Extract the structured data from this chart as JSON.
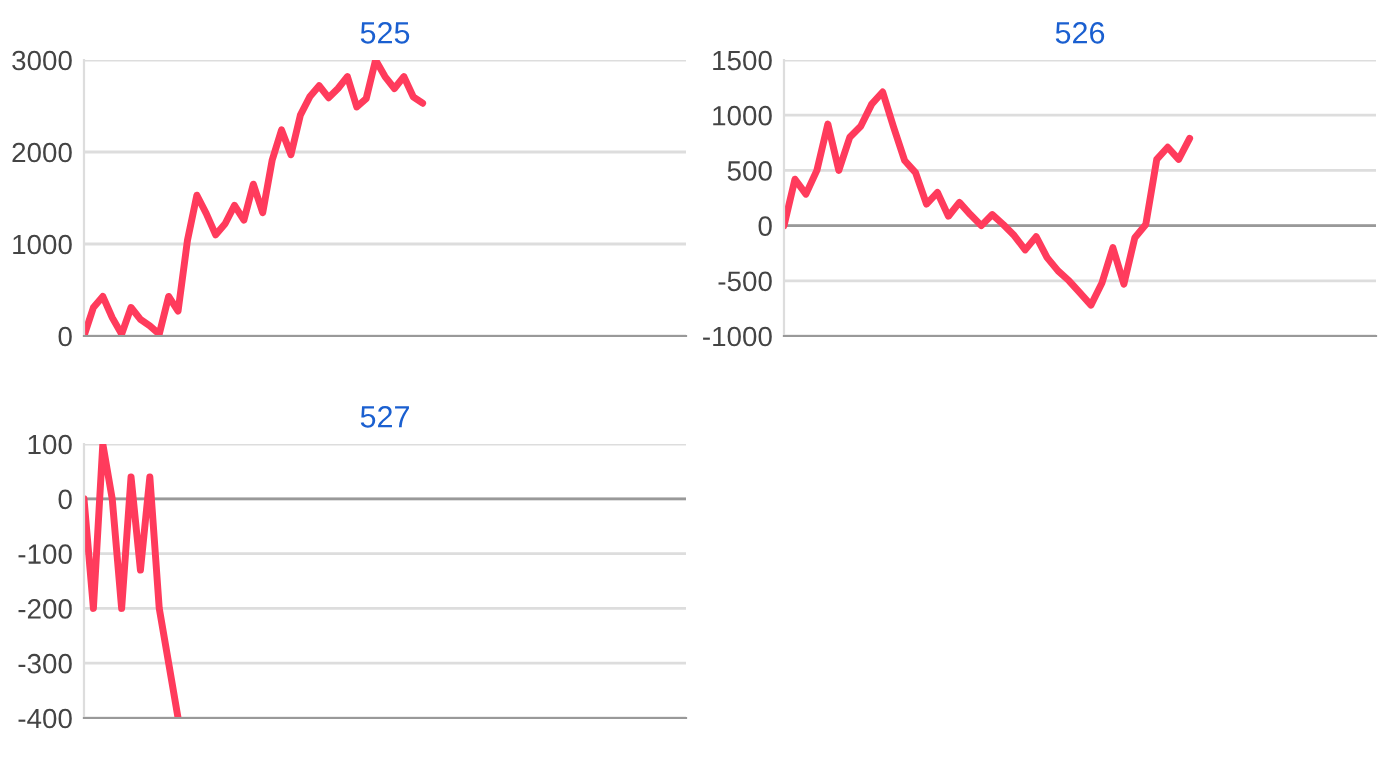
{
  "chart_data": [
    {
      "type": "line",
      "title": "525",
      "categories": [
        null,
        null,
        null,
        null,
        null,
        null,
        null,
        null,
        null,
        null,
        null,
        null,
        null,
        null,
        null,
        null,
        null,
        null,
        null,
        null,
        null,
        null,
        null,
        null,
        null,
        null,
        null,
        null,
        null,
        null,
        null,
        null,
        null,
        null,
        null,
        null,
        null,
        null,
        null,
        null,
        null,
        null,
        null,
        null,
        null,
        null,
        null,
        null,
        null,
        null,
        null,
        null,
        null,
        null,
        null,
        null,
        null,
        null,
        null,
        null,
        null,
        null,
        null,
        null,
        null
      ],
      "series": [
        {
          "color": "#ff3b5c",
          "values": [
            0,
            310,
            430,
            200,
            20,
            310,
            180,
            110,
            20,
            430,
            270,
            1040,
            1530,
            1330,
            1100,
            1220,
            1420,
            1260,
            1650,
            1340,
            1910,
            2240,
            1970,
            2400,
            2600,
            2720,
            2590,
            2690,
            2820,
            2490,
            2580,
            3000,
            2820,
            2690,
            2820,
            2600,
            2530,
            null,
            null,
            null,
            null,
            null,
            null,
            null,
            null,
            null,
            null,
            null,
            null,
            null,
            null,
            null,
            null,
            null,
            null,
            null,
            null,
            null,
            null,
            null,
            null,
            null,
            null,
            null,
            null
          ]
        }
      ],
      "ylim": [
        0,
        3000
      ],
      "yticks": [
        0,
        1000,
        2000,
        3000
      ],
      "grid": "y",
      "tick_labels": "y",
      "marker": "none",
      "line_style": "solid"
    },
    {
      "type": "line",
      "title": "526",
      "categories": [
        null,
        null,
        null,
        null,
        null,
        null,
        null,
        null,
        null,
        null,
        null,
        null,
        null,
        null,
        null,
        null,
        null,
        null,
        null,
        null,
        null,
        null,
        null,
        null,
        null,
        null,
        null,
        null,
        null,
        null,
        null,
        null,
        null,
        null,
        null,
        null,
        null,
        null,
        null,
        null,
        null,
        null,
        null,
        null,
        null,
        null,
        null,
        null,
        null,
        null,
        null,
        null,
        null,
        null,
        null
      ],
      "series": [
        {
          "color": "#ff3b5c",
          "values": [
            0,
            420,
            285,
            500,
            920,
            500,
            800,
            900,
            1100,
            1210,
            890,
            590,
            480,
            195,
            300,
            85,
            210,
            100,
            0,
            100,
            10,
            -90,
            -220,
            -100,
            -290,
            -410,
            -500,
            -610,
            -720,
            -520,
            -200,
            -530,
            -110,
            10,
            600,
            710,
            600,
            790,
            null,
            null,
            null,
            null,
            null,
            null,
            null,
            null,
            null,
            null,
            null,
            null,
            null,
            null,
            null,
            null,
            null
          ]
        }
      ],
      "ylim": [
        -1000,
        1500
      ],
      "yticks": [
        -1000,
        -500,
        0,
        500,
        1000,
        1500
      ],
      "grid": "y",
      "tick_labels": "y",
      "marker": "none",
      "line_style": "solid"
    },
    {
      "type": "line",
      "title": "527",
      "categories": [
        null,
        null,
        null,
        null,
        null,
        null,
        null,
        null,
        null,
        null,
        null,
        null,
        null,
        null,
        null,
        null,
        null,
        null,
        null,
        null,
        null,
        null,
        null,
        null,
        null,
        null,
        null,
        null,
        null,
        null,
        null,
        null,
        null,
        null,
        null,
        null,
        null,
        null,
        null,
        null,
        null,
        null,
        null,
        null,
        null,
        null,
        null,
        null,
        null,
        null,
        null,
        null,
        null,
        null,
        null,
        null,
        null,
        null,
        null,
        null,
        null,
        null,
        null,
        null,
        null
      ],
      "series": [
        {
          "color": "#ff3b5c",
          "values": [
            0,
            -200,
            100,
            0,
            -200,
            40,
            -130,
            40,
            -200,
            -300,
            -400,
            null,
            null,
            null,
            null,
            null,
            null,
            null,
            null,
            null,
            null,
            null,
            null,
            null,
            null,
            null,
            null,
            null,
            null,
            null,
            null,
            null,
            null,
            null,
            null,
            null,
            null,
            null,
            null,
            null,
            null,
            null,
            null,
            null,
            null,
            null,
            null,
            null,
            null,
            null,
            null,
            null,
            null,
            null,
            null,
            null,
            null,
            null,
            null,
            null,
            null,
            null,
            null,
            null,
            null
          ]
        }
      ],
      "ylim": [
        -400,
        100
      ],
      "yticks": [
        -400,
        -300,
        -200,
        -100,
        0,
        100
      ],
      "grid": "y",
      "tick_labels": "y",
      "marker": "none",
      "line_style": "solid"
    }
  ]
}
